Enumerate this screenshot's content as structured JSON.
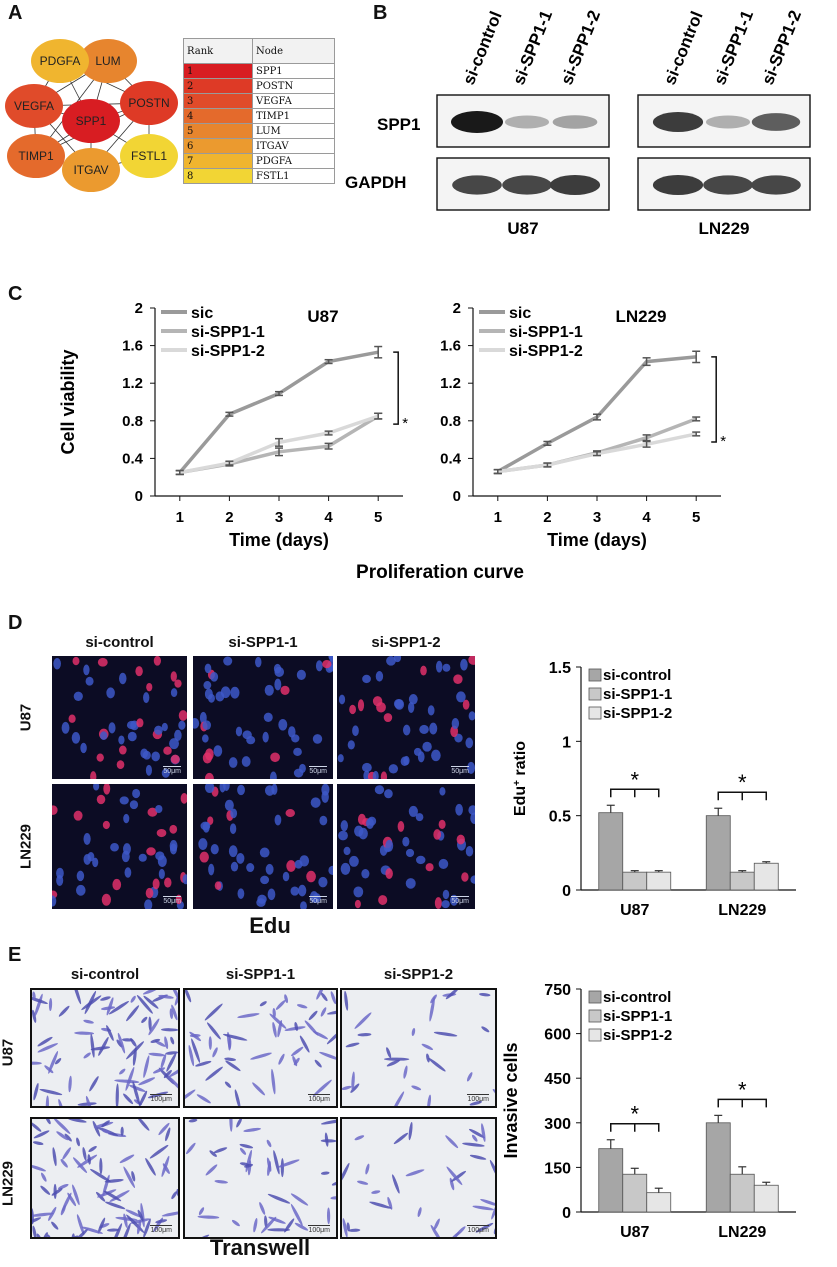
{
  "panels": [
    "A",
    "B",
    "C",
    "D",
    "E"
  ],
  "network": {
    "nodes": [
      {
        "name": "SPP1",
        "color": "#d81d22"
      },
      {
        "name": "POSTN",
        "color": "#de3a26"
      },
      {
        "name": "VEGFA",
        "color": "#e04b2a"
      },
      {
        "name": "TIMP1",
        "color": "#e46a2c"
      },
      {
        "name": "LUM",
        "color": "#e7852e"
      },
      {
        "name": "ITGAV",
        "color": "#eb9a2f"
      },
      {
        "name": "PDGFA",
        "color": "#f0b52f"
      },
      {
        "name": "FSTL1",
        "color": "#f2d534"
      }
    ],
    "table_header": {
      "rank": "Rank",
      "node": "Node"
    },
    "table_rows": [
      {
        "rank": "1",
        "node": "SPP1",
        "color": "#d81d22"
      },
      {
        "rank": "2",
        "node": "POSTN",
        "color": "#de3a26"
      },
      {
        "rank": "3",
        "node": "VEGFA",
        "color": "#e04b2a"
      },
      {
        "rank": "4",
        "node": "TIMP1",
        "color": "#e46a2c"
      },
      {
        "rank": "5",
        "node": "LUM",
        "color": "#e7852e"
      },
      {
        "rank": "6",
        "node": "ITGAV",
        "color": "#eb9a2f"
      },
      {
        "rank": "7",
        "node": "PDGFA",
        "color": "#f0b52f"
      },
      {
        "rank": "8",
        "node": "FSTL1",
        "color": "#f2d534"
      }
    ]
  },
  "western": {
    "lanes": [
      "si-control",
      "si-SPP1-1",
      "si-SPP1-2"
    ],
    "rows": [
      "SPP1",
      "GAPDH"
    ],
    "cell_lines": [
      "U87",
      "LN229"
    ],
    "band_intensity": {
      "U87": {
        "SPP1": [
          1.0,
          0.35,
          0.4
        ],
        "GAPDH": [
          0.8,
          0.8,
          0.85
        ]
      },
      "LN229": {
        "SPP1": [
          0.85,
          0.35,
          0.7
        ],
        "GAPDH": [
          0.85,
          0.8,
          0.8
        ]
      }
    }
  },
  "proliferation": {
    "caption": "Proliferation curve",
    "ylabel": "Cell viability",
    "star": "*"
  },
  "edu": {
    "conditions": [
      "si-control",
      "si-SPP1-1",
      "si-SPP1-2"
    ],
    "rows": [
      "U87",
      "LN229"
    ],
    "scalebar": "50μm",
    "caption": "Edu",
    "star": "*"
  },
  "transwell": {
    "conditions": [
      "si-control",
      "si-SPP1-1",
      "si-SPP1-2"
    ],
    "rows": [
      "U87",
      "LN229"
    ],
    "scalebar": "100μm",
    "caption": "Transwell",
    "star": "*"
  },
  "chart_data": [
    {
      "type": "line",
      "title": "U87",
      "xlabel": "Time (days)",
      "ylabel": "Cell viability",
      "x": [
        1,
        2,
        3,
        4,
        5
      ],
      "xlim": [
        0.5,
        5.5
      ],
      "ylim": [
        0,
        2
      ],
      "yticks": [
        "0",
        "0.4",
        "0.8",
        "1.2",
        "1.6",
        "2"
      ],
      "series": [
        {
          "name": "sic",
          "color": "#9a9a9a",
          "values": [
            0.25,
            0.87,
            1.09,
            1.43,
            1.53
          ],
          "err": [
            0.02,
            0.02,
            0.02,
            0.02,
            0.06
          ]
        },
        {
          "name": "si-SPP1-1",
          "color": "#b5b5b5",
          "values": [
            0.25,
            0.34,
            0.47,
            0.53,
            0.85
          ],
          "err": [
            0.02,
            0.02,
            0.04,
            0.03,
            0.03
          ]
        },
        {
          "name": "si-SPP1-2",
          "color": "#d9d9d9",
          "values": [
            0.25,
            0.35,
            0.57,
            0.67,
            0.85
          ],
          "err": [
            0.02,
            0.02,
            0.04,
            0.02,
            0.03
          ]
        }
      ]
    },
    {
      "type": "line",
      "title": "LN229",
      "xlabel": "Time (days)",
      "ylabel": "",
      "x": [
        1,
        2,
        3,
        4,
        5
      ],
      "xlim": [
        0.5,
        5.5
      ],
      "ylim": [
        0,
        2
      ],
      "yticks": [
        "0",
        "0.4",
        "0.8",
        "1.2",
        "1.6",
        "2"
      ],
      "series": [
        {
          "name": "sic",
          "color": "#9a9a9a",
          "values": [
            0.26,
            0.56,
            0.84,
            1.43,
            1.48
          ],
          "err": [
            0.02,
            0.02,
            0.03,
            0.04,
            0.06
          ]
        },
        {
          "name": "si-SPP1-1",
          "color": "#b5b5b5",
          "values": [
            0.26,
            0.33,
            0.46,
            0.62,
            0.82
          ],
          "err": [
            0.02,
            0.02,
            0.02,
            0.03,
            0.02
          ]
        },
        {
          "name": "si-SPP1-2",
          "color": "#d9d9d9",
          "values": [
            0.26,
            0.33,
            0.45,
            0.55,
            0.66
          ],
          "err": [
            0.02,
            0.02,
            0.02,
            0.03,
            0.02
          ]
        }
      ]
    },
    {
      "type": "bar",
      "title": "",
      "xlabel": "",
      "ylabel": "Edu+ ratio",
      "categories": [
        "U87",
        "LN229"
      ],
      "ylim": [
        0,
        1.5
      ],
      "yticks": [
        "0",
        "0.5",
        "1",
        "1.5"
      ],
      "series": [
        {
          "name": "si-control",
          "color": "#a6a6a6",
          "values": [
            0.52,
            0.5
          ],
          "err": [
            0.05,
            0.05
          ]
        },
        {
          "name": "si-SPP1-1",
          "color": "#c8c8c8",
          "values": [
            0.12,
            0.12
          ],
          "err": [
            0.01,
            0.01
          ]
        },
        {
          "name": "si-SPP1-2",
          "color": "#e6e6e6",
          "values": [
            0.12,
            0.18
          ],
          "err": [
            0.01,
            0.01
          ]
        }
      ]
    },
    {
      "type": "bar",
      "title": "",
      "xlabel": "",
      "ylabel": "Invasive cells",
      "categories": [
        "U87",
        "LN229"
      ],
      "ylim": [
        0,
        750
      ],
      "yticks": [
        "0",
        "150",
        "300",
        "450",
        "600",
        "750"
      ],
      "series": [
        {
          "name": "si-control",
          "color": "#a6a6a6",
          "values": [
            213,
            300
          ],
          "err": [
            30,
            25
          ]
        },
        {
          "name": "si-SPP1-1",
          "color": "#c8c8c8",
          "values": [
            127,
            127
          ],
          "err": [
            20,
            25
          ]
        },
        {
          "name": "si-SPP1-2",
          "color": "#e6e6e6",
          "values": [
            65,
            90
          ],
          "err": [
            15,
            10
          ]
        }
      ]
    }
  ]
}
